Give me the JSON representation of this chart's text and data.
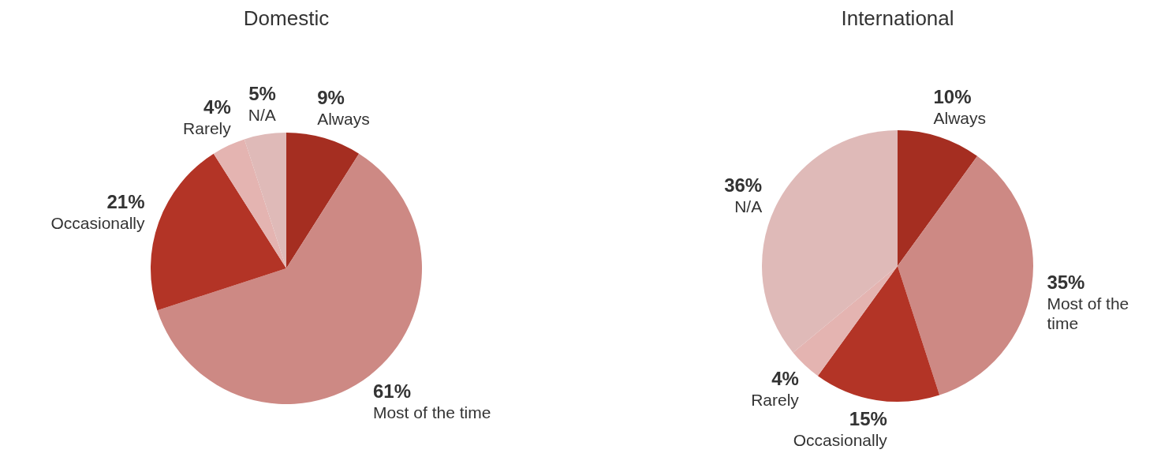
{
  "chart_data": [
    {
      "type": "pie",
      "title": "Domestic",
      "categories": [
        "Always",
        "Most of the time",
        "Occasionally",
        "Rarely",
        "N/A"
      ],
      "values": [
        9,
        61,
        21,
        4,
        5
      ],
      "value_labels": [
        "9%",
        "61%",
        "21%",
        "4%",
        "5%"
      ],
      "colors": [
        "#a52e21",
        "#cd8984",
        "#b33426",
        "#e4b4b1",
        "#dfbab8"
      ],
      "legend": false
    },
    {
      "type": "pie",
      "title": "International",
      "categories": [
        "Always",
        "Most of the time",
        "Occasionally",
        "Rarely",
        "N/A"
      ],
      "values": [
        10,
        35,
        15,
        4,
        36
      ],
      "value_labels": [
        "10%",
        "35%",
        "15%",
        "4%",
        "36%"
      ],
      "colors": [
        "#a52e21",
        "#cd8984",
        "#b33426",
        "#e4b4b1",
        "#dfbab8"
      ],
      "legend": false
    }
  ]
}
